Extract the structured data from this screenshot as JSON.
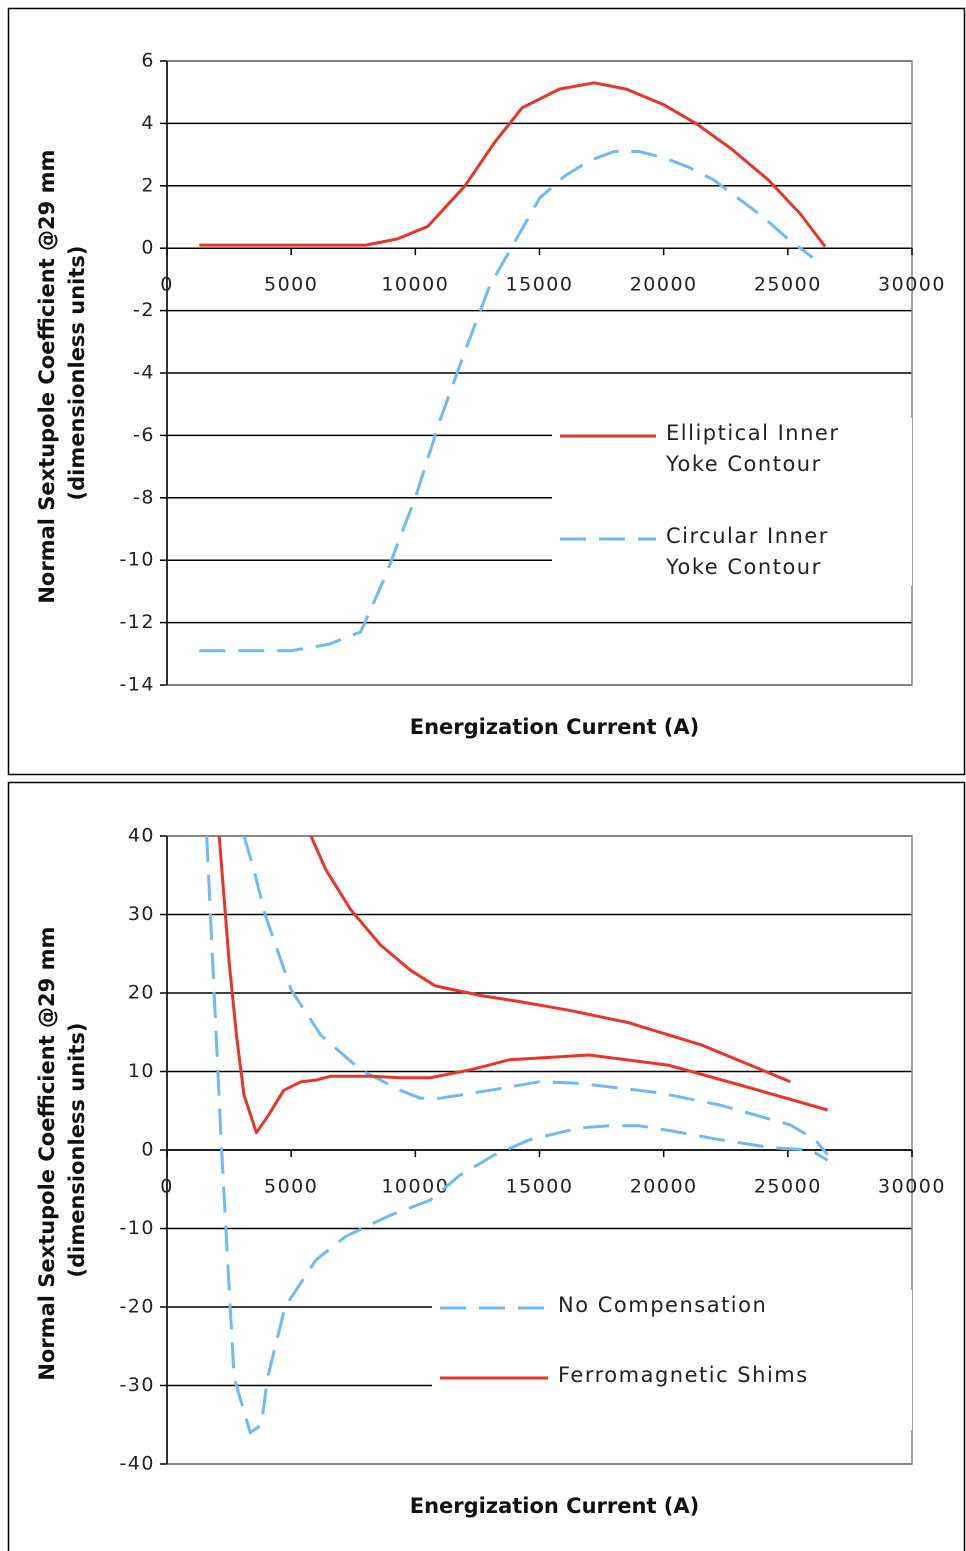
{
  "chart_data": [
    {
      "type": "line",
      "x_label": "Energization Current (A)",
      "y_label": "Normal Sextupole Coefficient @29 mm (dimensionless units)",
      "xlim": [
        0,
        30000
      ],
      "xticks": [
        0,
        5000,
        10000,
        15000,
        20000,
        25000,
        30000
      ],
      "ylim": [
        -14,
        6
      ],
      "yticks": [
        -14,
        -12,
        -10,
        -8,
        -6,
        -4,
        -2,
        0,
        2,
        4,
        6
      ],
      "grid": true,
      "legend": "right",
      "series": [
        {
          "name": "Elliptical Inner Yoke Contour",
          "color": "#e8352b",
          "dash": false,
          "x": [
            1300,
            8000,
            9300,
            10500,
            12000,
            13200,
            14300,
            15800,
            17200,
            18500,
            20000,
            21300,
            22700,
            24200,
            25500,
            26500
          ],
          "values": [
            0.1,
            0.1,
            0.3,
            0.7,
            2.0,
            3.4,
            4.5,
            5.1,
            5.3,
            5.1,
            4.6,
            4.0,
            3.2,
            2.2,
            1.1,
            0.05
          ]
        },
        {
          "name": "Circular Inner Yoke Contour",
          "color": "#6fb9f5",
          "dash": true,
          "x": [
            1300,
            5000,
            6500,
            7800,
            8800,
            10000,
            11000,
            12000,
            13000,
            14000,
            15000,
            16000,
            17000,
            18000,
            19000,
            20000,
            21000,
            22000,
            23000,
            24000,
            25000,
            26000
          ],
          "values": [
            -12.9,
            -12.9,
            -12.7,
            -12.3,
            -10.5,
            -8,
            -5.5,
            -3.3,
            -1.2,
            0.2,
            1.6,
            2.3,
            2.8,
            3.1,
            3.1,
            2.9,
            2.6,
            2.2,
            1.6,
            1.0,
            0.3,
            -0.3
          ]
        }
      ]
    },
    {
      "type": "line",
      "x_label": "Energization Current (A)",
      "y_label": "Normal Sextupole Coefficient @29 mm (dimensionless units)",
      "xlim": [
        0,
        30000
      ],
      "xticks": [
        0,
        5000,
        10000,
        15000,
        20000,
        25000,
        30000
      ],
      "ylim": [
        -40,
        40
      ],
      "yticks": [
        -40,
        -30,
        -20,
        -10,
        0,
        10,
        20,
        30,
        40
      ],
      "grid": true,
      "legend": "lower right",
      "series": [
        {
          "name": "No Compensation",
          "color": "#6fb9f5",
          "dash": true,
          "x": [
            1600,
            2200,
            2700,
            3350,
            3800,
            4050,
            4750,
            6000,
            7200,
            9000,
            10600,
            11800,
            13200,
            14600,
            16600,
            17800,
            19000,
            20200,
            22300,
            24300,
            25900,
            26600,
            null,
            3100,
            3500,
            3950,
            5000,
            6200,
            7800,
            9400,
            10200,
            11000,
            13000,
            15000,
            16600,
            19800,
            22300,
            25100,
            26100,
            26600
          ],
          "values": [
            40,
            0,
            -29,
            -36,
            -35,
            -29,
            -20,
            -14,
            -11,
            -8.3,
            -6.4,
            -3.2,
            -0.6,
            1.3,
            2.8,
            3.1,
            3.1,
            2.5,
            1.3,
            0.3,
            0,
            -1.3,
            null,
            40,
            35.7,
            30,
            20.4,
            14.6,
            10.2,
            7.6,
            6.6,
            6.6,
            7.6,
            8.7,
            8.5,
            7.3,
            5.7,
            3.2,
            1.3,
            -0.6
          ]
        },
        {
          "name": "Ferromagnetic Shims",
          "color": "#e8352b",
          "dash": false,
          "x": [
            2100,
            2500,
            2800,
            3100,
            3600,
            4100,
            4700,
            5400,
            6000,
            6600,
            8200,
            9400,
            10600,
            12200,
            13800,
            17000,
            20200,
            23500,
            26600,
            null,
            5800,
            6400,
            7400,
            8600,
            9800,
            10800,
            12600,
            14200,
            16200,
            18600,
            21500,
            25100
          ],
          "values": [
            40,
            24,
            14.6,
            7,
            2.2,
            4.5,
            7.6,
            8.7,
            8.9,
            9.4,
            9.4,
            9.2,
            9.2,
            10.2,
            11.5,
            12.1,
            10.8,
            7.9,
            5.1,
            null,
            40,
            35.7,
            30.6,
            26.1,
            22.9,
            20.9,
            19.7,
            18.9,
            17.8,
            16.2,
            13.4,
            8.7
          ]
        }
      ]
    }
  ]
}
